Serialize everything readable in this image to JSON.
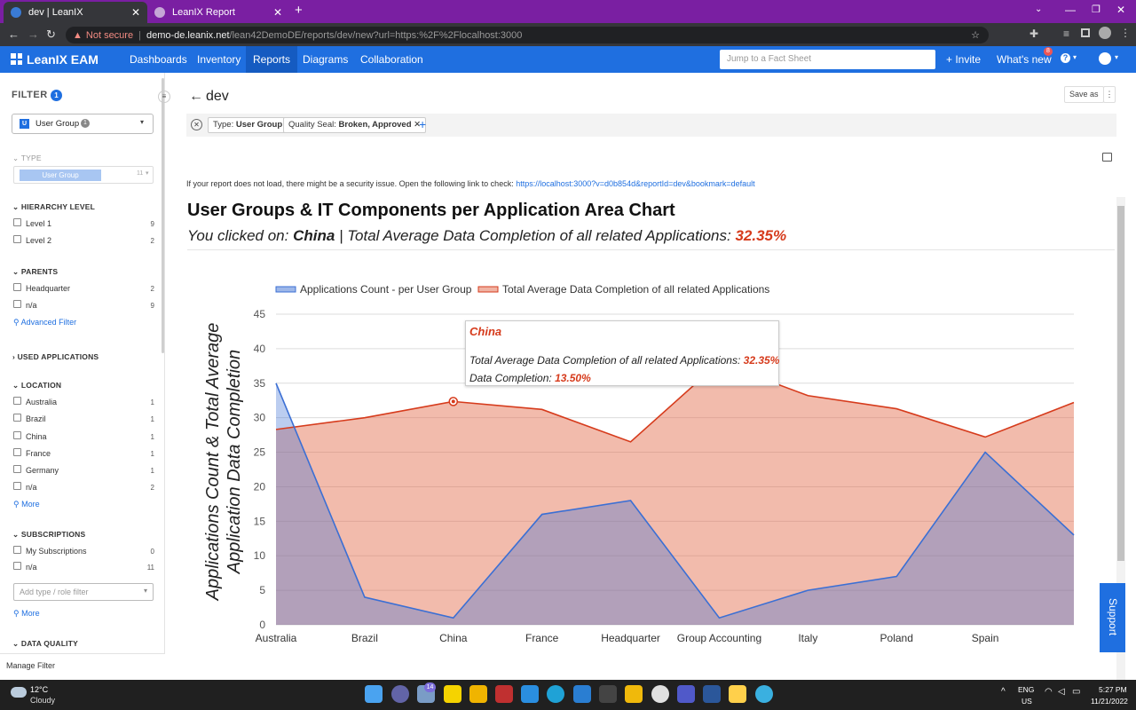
{
  "browser": {
    "tabs": [
      {
        "title": "dev | LeanIX"
      },
      {
        "title": "LeanIX Report"
      }
    ],
    "security": "Not secure",
    "url_host": "demo-de.leanix.net",
    "url_path": "/lean42DemoDE/reports/dev/new?url=https:%2F%2Flocalhost:3000"
  },
  "app": {
    "logo": "LeanIX EAM",
    "nav": [
      "Dashboards",
      "Inventory",
      "Reports",
      "Diagrams",
      "Collaboration"
    ],
    "search_placeholder": "Jump to a Fact Sheet",
    "invite": "+ Invite",
    "whats_new": "What's new",
    "notif_count": "8"
  },
  "filter": {
    "title": "FILTER",
    "count": "1",
    "selector_letter": "U",
    "selector_label": "User Group",
    "selector_count": "1",
    "type_section": "TYPE",
    "type_value": "User Group",
    "type_count": "11",
    "sections": {
      "hierarchy": "HIERARCHY LEVEL",
      "parents": "PARENTS",
      "used_apps": "USED APPLICATIONS",
      "location": "LOCATION",
      "subscriptions": "SUBSCRIPTIONS",
      "data_quality": "DATA QUALITY"
    },
    "hierarchy": [
      {
        "label": "Level 1",
        "count": "9"
      },
      {
        "label": "Level 2",
        "count": "2"
      }
    ],
    "parents": [
      {
        "label": "Headquarter",
        "count": "2"
      },
      {
        "label": "n/a",
        "count": "9"
      }
    ],
    "advanced": "Advanced Filter",
    "location": [
      {
        "label": "Australia",
        "count": "1"
      },
      {
        "label": "Brazil",
        "count": "1"
      },
      {
        "label": "China",
        "count": "1"
      },
      {
        "label": "France",
        "count": "1"
      },
      {
        "label": "Germany",
        "count": "1"
      },
      {
        "label": "n/a",
        "count": "2"
      }
    ],
    "more": "More",
    "subscriptions": [
      {
        "label": "My Subscriptions",
        "count": "0"
      },
      {
        "label": "n/a",
        "count": "11"
      }
    ],
    "add_filter_placeholder": "Add type / role filter",
    "manage": "Manage Filter"
  },
  "report": {
    "title": "dev",
    "save_as": "Save as",
    "chips": [
      {
        "key": "Type:",
        "value": "User Group"
      },
      {
        "key": "Quality Seal:",
        "value": "Broken, Approved"
      }
    ],
    "security_note": "If your report does not load, there might be a security issue. Open the following link to check:",
    "security_link": "https://localhost:3000?v=d0b854d&reportId=dev&bookmark=default",
    "heading": "User Groups & IT Components per Application Area Chart",
    "clicked_prefix": "You clicked on:",
    "clicked_value": "China",
    "clicked_mid": "| Total Average Data Completion of all related Applications:",
    "clicked_pct": "32.35%",
    "support": "Support"
  },
  "chart_data": {
    "type": "area",
    "categories": [
      "Australia",
      "Brazil",
      "China",
      "France",
      "Headquarter",
      "Group Accounting",
      "Italy",
      "Poland",
      "Spain",
      ""
    ],
    "ylabel_line1": "Applications Count & Total Average",
    "ylabel_line2": "Application Data Completion",
    "ylim": [
      0,
      45
    ],
    "yticks": [
      0,
      5,
      10,
      15,
      20,
      25,
      30,
      35,
      40,
      45
    ],
    "legend_position": "top-center",
    "series": [
      {
        "name": "Applications Count - per User Group",
        "color": "#3b6fd4",
        "values": [
          35,
          4,
          1,
          16,
          18,
          1,
          5,
          7,
          25,
          13
        ]
      },
      {
        "name": "Total Average Data Completion of all related Applications",
        "color": "#d63b1c",
        "values": [
          28.3,
          30,
          32.35,
          31.2,
          26.5,
          38,
          33.2,
          31.3,
          27.2,
          32.2
        ]
      }
    ],
    "tooltip": {
      "title": "China",
      "line1_label": "Total Average Data Completion of all related Applications:",
      "line1_value": "32.35%",
      "line2_label": "Data Completion:",
      "line2_value": "13.50%"
    }
  },
  "taskbar": {
    "temp": "12°C",
    "weather": "Cloudy",
    "badge": "14",
    "lang1": "ENG",
    "lang2": "US",
    "time": "5:27 PM",
    "date": "11/21/2022"
  }
}
